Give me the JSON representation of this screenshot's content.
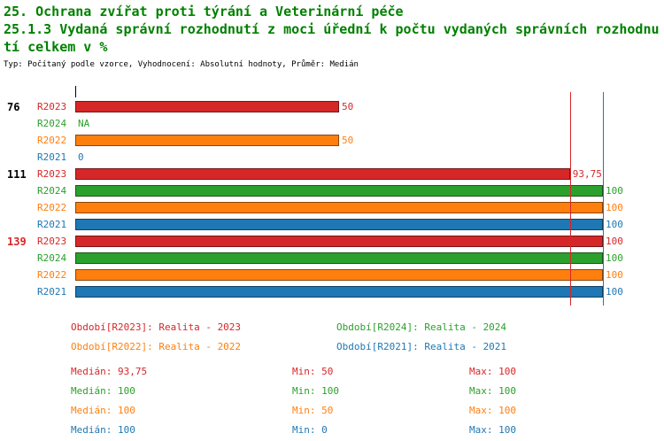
{
  "header": {
    "title_line1": "25. Ochrana zvířat proti týrání a Veterinární péče",
    "title_line2": "25.1.3 Vydaná správní rozhodnutí z moci úřední k počtu vydaných správních rozhodnutí celkem v %",
    "subtitle": "Typ: Počítaný podle vzorce, Vyhodnocení: Absolutní hodnoty, Průměr: Medián"
  },
  "colors": {
    "title": "#008000",
    "r2023": "#d62728",
    "r2024": "#2ca02c",
    "r2022": "#ff7f0e",
    "r2021": "#1f77b4"
  },
  "chart_data": {
    "type": "bar",
    "orientation": "horizontal",
    "xlim": [
      0,
      100
    ],
    "series_order": [
      "R2023",
      "R2024",
      "R2022",
      "R2021"
    ],
    "groups": [
      {
        "group_label": "76",
        "group_label_color": "#000000",
        "rows": [
          {
            "series": "R2023",
            "color_key": "r2023",
            "value": 50,
            "value_label": "50"
          },
          {
            "series": "R2024",
            "color_key": "r2024",
            "value": null,
            "value_label": "NA"
          },
          {
            "series": "R2022",
            "color_key": "r2022",
            "value": 50,
            "value_label": "50"
          },
          {
            "series": "R2021",
            "color_key": "r2021",
            "value": 0,
            "value_label": "0"
          }
        ]
      },
      {
        "group_label": "111",
        "group_label_color": "#000000",
        "rows": [
          {
            "series": "R2023",
            "color_key": "r2023",
            "value": 93.75,
            "value_label": "93,75"
          },
          {
            "series": "R2024",
            "color_key": "r2024",
            "value": 100,
            "value_label": "100"
          },
          {
            "series": "R2022",
            "color_key": "r2022",
            "value": 100,
            "value_label": "100"
          },
          {
            "series": "R2021",
            "color_key": "r2021",
            "value": 100,
            "value_label": "100"
          }
        ]
      },
      {
        "group_label": "139",
        "group_label_color": "#d62728",
        "rows": [
          {
            "series": "R2023",
            "color_key": "r2023",
            "value": 100,
            "value_label": "100"
          },
          {
            "series": "R2024",
            "color_key": "r2024",
            "value": 100,
            "value_label": "100"
          },
          {
            "series": "R2022",
            "color_key": "r2022",
            "value": 100,
            "value_label": "100"
          },
          {
            "series": "R2021",
            "color_key": "r2021",
            "value": 100,
            "value_label": "100"
          }
        ]
      }
    ],
    "reference_lines": [
      {
        "value": 93.75,
        "color_key": "r2023"
      },
      {
        "value": 100,
        "color_key": "r2021"
      }
    ]
  },
  "legend": [
    {
      "label": "Období[R2023]: Realita - 2023",
      "color_key": "r2023"
    },
    {
      "label": "Období[R2024]: Realita - 2024",
      "color_key": "r2024"
    },
    {
      "label": "Období[R2022]: Realita - 2022",
      "color_key": "r2022"
    },
    {
      "label": "Období[R2021]: Realita - 2021",
      "color_key": "r2021"
    }
  ],
  "stats": [
    {
      "median": "Medián: 93,75",
      "min": "Min: 50",
      "max": "Max: 100",
      "color_key": "r2023"
    },
    {
      "median": "Medián: 100",
      "min": "Min: 100",
      "max": "Max: 100",
      "color_key": "r2024"
    },
    {
      "median": "Medián: 100",
      "min": "Min: 50",
      "max": "Max: 100",
      "color_key": "r2022"
    },
    {
      "median": "Medián: 100",
      "min": "Min: 0",
      "max": "Max: 100",
      "color_key": "r2021"
    }
  ]
}
